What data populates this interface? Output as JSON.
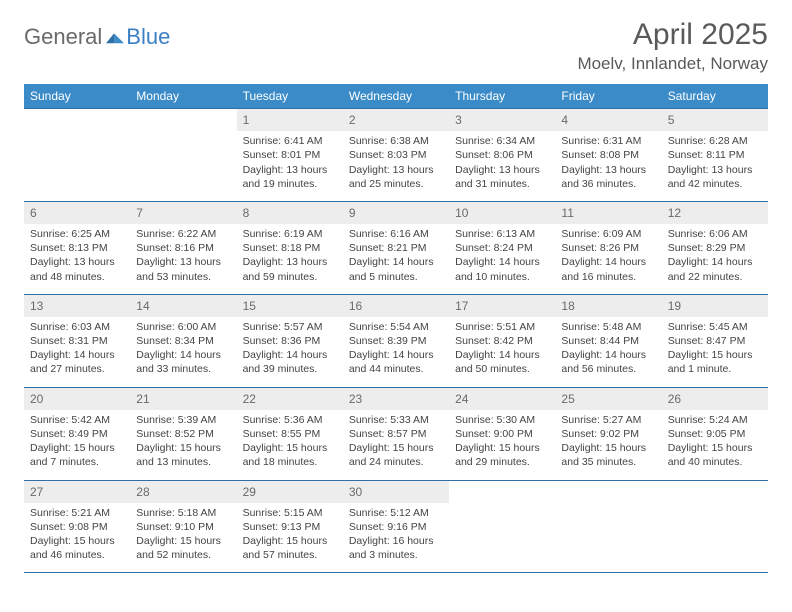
{
  "logo": {
    "word1": "General",
    "word2": "Blue"
  },
  "header": {
    "month_title": "April 2025",
    "location": "Moelv, Innlandet, Norway"
  },
  "colors": {
    "header_bg": "#3b8bc9",
    "header_text": "#ffffff",
    "daynum_bg": "#ededed",
    "row_border": "#2f6fa8",
    "body_text": "#444444",
    "title_text": "#5a5a5a",
    "logo_gray": "#6a6a6a",
    "logo_blue": "#3b7fc4",
    "page_bg": "#ffffff"
  },
  "day_labels": [
    "Sunday",
    "Monday",
    "Tuesday",
    "Wednesday",
    "Thursday",
    "Friday",
    "Saturday"
  ],
  "weeks": [
    {
      "nums": [
        "",
        "",
        "1",
        "2",
        "3",
        "4",
        "5"
      ],
      "cells": [
        {
          "empty": true
        },
        {
          "empty": true
        },
        {
          "sunrise": "Sunrise: 6:41 AM",
          "sunset": "Sunset: 8:01 PM",
          "daylight1": "Daylight: 13 hours",
          "daylight2": "and 19 minutes."
        },
        {
          "sunrise": "Sunrise: 6:38 AM",
          "sunset": "Sunset: 8:03 PM",
          "daylight1": "Daylight: 13 hours",
          "daylight2": "and 25 minutes."
        },
        {
          "sunrise": "Sunrise: 6:34 AM",
          "sunset": "Sunset: 8:06 PM",
          "daylight1": "Daylight: 13 hours",
          "daylight2": "and 31 minutes."
        },
        {
          "sunrise": "Sunrise: 6:31 AM",
          "sunset": "Sunset: 8:08 PM",
          "daylight1": "Daylight: 13 hours",
          "daylight2": "and 36 minutes."
        },
        {
          "sunrise": "Sunrise: 6:28 AM",
          "sunset": "Sunset: 8:11 PM",
          "daylight1": "Daylight: 13 hours",
          "daylight2": "and 42 minutes."
        }
      ]
    },
    {
      "nums": [
        "6",
        "7",
        "8",
        "9",
        "10",
        "11",
        "12"
      ],
      "cells": [
        {
          "sunrise": "Sunrise: 6:25 AM",
          "sunset": "Sunset: 8:13 PM",
          "daylight1": "Daylight: 13 hours",
          "daylight2": "and 48 minutes."
        },
        {
          "sunrise": "Sunrise: 6:22 AM",
          "sunset": "Sunset: 8:16 PM",
          "daylight1": "Daylight: 13 hours",
          "daylight2": "and 53 minutes."
        },
        {
          "sunrise": "Sunrise: 6:19 AM",
          "sunset": "Sunset: 8:18 PM",
          "daylight1": "Daylight: 13 hours",
          "daylight2": "and 59 minutes."
        },
        {
          "sunrise": "Sunrise: 6:16 AM",
          "sunset": "Sunset: 8:21 PM",
          "daylight1": "Daylight: 14 hours",
          "daylight2": "and 5 minutes."
        },
        {
          "sunrise": "Sunrise: 6:13 AM",
          "sunset": "Sunset: 8:24 PM",
          "daylight1": "Daylight: 14 hours",
          "daylight2": "and 10 minutes."
        },
        {
          "sunrise": "Sunrise: 6:09 AM",
          "sunset": "Sunset: 8:26 PM",
          "daylight1": "Daylight: 14 hours",
          "daylight2": "and 16 minutes."
        },
        {
          "sunrise": "Sunrise: 6:06 AM",
          "sunset": "Sunset: 8:29 PM",
          "daylight1": "Daylight: 14 hours",
          "daylight2": "and 22 minutes."
        }
      ]
    },
    {
      "nums": [
        "13",
        "14",
        "15",
        "16",
        "17",
        "18",
        "19"
      ],
      "cells": [
        {
          "sunrise": "Sunrise: 6:03 AM",
          "sunset": "Sunset: 8:31 PM",
          "daylight1": "Daylight: 14 hours",
          "daylight2": "and 27 minutes."
        },
        {
          "sunrise": "Sunrise: 6:00 AM",
          "sunset": "Sunset: 8:34 PM",
          "daylight1": "Daylight: 14 hours",
          "daylight2": "and 33 minutes."
        },
        {
          "sunrise": "Sunrise: 5:57 AM",
          "sunset": "Sunset: 8:36 PM",
          "daylight1": "Daylight: 14 hours",
          "daylight2": "and 39 minutes."
        },
        {
          "sunrise": "Sunrise: 5:54 AM",
          "sunset": "Sunset: 8:39 PM",
          "daylight1": "Daylight: 14 hours",
          "daylight2": "and 44 minutes."
        },
        {
          "sunrise": "Sunrise: 5:51 AM",
          "sunset": "Sunset: 8:42 PM",
          "daylight1": "Daylight: 14 hours",
          "daylight2": "and 50 minutes."
        },
        {
          "sunrise": "Sunrise: 5:48 AM",
          "sunset": "Sunset: 8:44 PM",
          "daylight1": "Daylight: 14 hours",
          "daylight2": "and 56 minutes."
        },
        {
          "sunrise": "Sunrise: 5:45 AM",
          "sunset": "Sunset: 8:47 PM",
          "daylight1": "Daylight: 15 hours",
          "daylight2": "and 1 minute."
        }
      ]
    },
    {
      "nums": [
        "20",
        "21",
        "22",
        "23",
        "24",
        "25",
        "26"
      ],
      "cells": [
        {
          "sunrise": "Sunrise: 5:42 AM",
          "sunset": "Sunset: 8:49 PM",
          "daylight1": "Daylight: 15 hours",
          "daylight2": "and 7 minutes."
        },
        {
          "sunrise": "Sunrise: 5:39 AM",
          "sunset": "Sunset: 8:52 PM",
          "daylight1": "Daylight: 15 hours",
          "daylight2": "and 13 minutes."
        },
        {
          "sunrise": "Sunrise: 5:36 AM",
          "sunset": "Sunset: 8:55 PM",
          "daylight1": "Daylight: 15 hours",
          "daylight2": "and 18 minutes."
        },
        {
          "sunrise": "Sunrise: 5:33 AM",
          "sunset": "Sunset: 8:57 PM",
          "daylight1": "Daylight: 15 hours",
          "daylight2": "and 24 minutes."
        },
        {
          "sunrise": "Sunrise: 5:30 AM",
          "sunset": "Sunset: 9:00 PM",
          "daylight1": "Daylight: 15 hours",
          "daylight2": "and 29 minutes."
        },
        {
          "sunrise": "Sunrise: 5:27 AM",
          "sunset": "Sunset: 9:02 PM",
          "daylight1": "Daylight: 15 hours",
          "daylight2": "and 35 minutes."
        },
        {
          "sunrise": "Sunrise: 5:24 AM",
          "sunset": "Sunset: 9:05 PM",
          "daylight1": "Daylight: 15 hours",
          "daylight2": "and 40 minutes."
        }
      ]
    },
    {
      "nums": [
        "27",
        "28",
        "29",
        "30",
        "",
        "",
        ""
      ],
      "cells": [
        {
          "sunrise": "Sunrise: 5:21 AM",
          "sunset": "Sunset: 9:08 PM",
          "daylight1": "Daylight: 15 hours",
          "daylight2": "and 46 minutes."
        },
        {
          "sunrise": "Sunrise: 5:18 AM",
          "sunset": "Sunset: 9:10 PM",
          "daylight1": "Daylight: 15 hours",
          "daylight2": "and 52 minutes."
        },
        {
          "sunrise": "Sunrise: 5:15 AM",
          "sunset": "Sunset: 9:13 PM",
          "daylight1": "Daylight: 15 hours",
          "daylight2": "and 57 minutes."
        },
        {
          "sunrise": "Sunrise: 5:12 AM",
          "sunset": "Sunset: 9:16 PM",
          "daylight1": "Daylight: 16 hours",
          "daylight2": "and 3 minutes."
        },
        {
          "empty": true
        },
        {
          "empty": true
        },
        {
          "empty": true
        }
      ]
    }
  ]
}
